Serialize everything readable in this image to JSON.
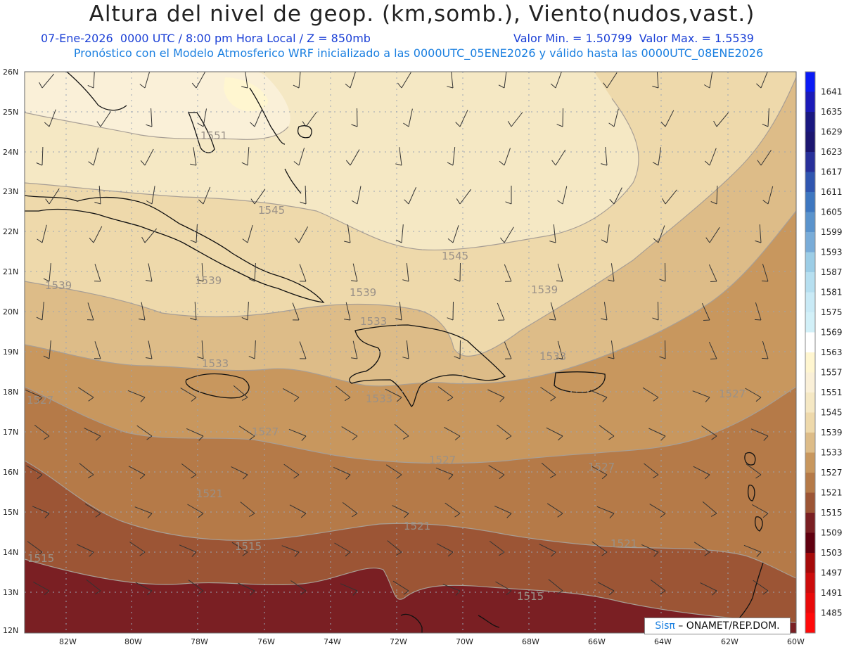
{
  "title": "Altura del nivel de geop. (km,somb.), Viento(nudos,vast.)",
  "subtitle_left": "07-Ene-2026  0000 UTC / 8:00 pm Hora Local / Z = 850mb",
  "subtitle_right": "Valor Min. = 1.50799  Valor Max. = 1.5539",
  "subtitle2": "Pronóstico con el Modelo Atmosferico WRF inicializado a las 0000UTC_05ENE2026 y válido hasta las  0000UTC_08ENE2026",
  "lat_labels": [
    "26N",
    "25N",
    "24N",
    "23N",
    "22N",
    "21N",
    "20N",
    "19N",
    "18N",
    "17N",
    "16N",
    "15N",
    "14N",
    "13N",
    "12N"
  ],
  "lon_labels": [
    "82W",
    "80W",
    "78W",
    "76W",
    "74W",
    "72W",
    "70W",
    "68W",
    "66W",
    "64W",
    "62W",
    "60W"
  ],
  "colorbar": {
    "labels": [
      "1641",
      "1635",
      "1629",
      "1623",
      "1617",
      "1611",
      "1605",
      "1599",
      "1593",
      "1587",
      "1581",
      "1575",
      "1569",
      "1563",
      "1557",
      "1551",
      "1545",
      "1539",
      "1533",
      "1527",
      "1521",
      "1515",
      "1509",
      "1503",
      "1497",
      "1491",
      "1485"
    ],
    "colors": [
      "#0a1af5",
      "#1b1ab8",
      "#1a1880",
      "#1c1670",
      "#28309a",
      "#3056b0",
      "#3e77c0",
      "#5a93cc",
      "#79acd8",
      "#9ccde6",
      "#b6dff0",
      "#c9eaf6",
      "#d2f0f8",
      "#ffffff",
      "#fff6d0",
      "#faf0d8",
      "#f5e8c4",
      "#eed9ab",
      "#ddbc88",
      "#c8975e",
      "#b57a48",
      "#9c5535",
      "#7a1f23",
      "#600010",
      "#a50a0a",
      "#cc0c0c",
      "#e80a0a",
      "#ff0a0a"
    ]
  },
  "contour_labels": [
    {
      "text": "1551"
    },
    {
      "text": "1545"
    },
    {
      "text": "1545"
    },
    {
      "text": "1539"
    },
    {
      "text": "1539"
    },
    {
      "text": "1539"
    },
    {
      "text": "1539"
    },
    {
      "text": "1533"
    },
    {
      "text": "1533"
    },
    {
      "text": "1533"
    },
    {
      "text": "1533"
    },
    {
      "text": "1527"
    },
    {
      "text": "1527"
    },
    {
      "text": "1527"
    },
    {
      "text": "1527"
    },
    {
      "text": "1527"
    },
    {
      "text": "1521"
    },
    {
      "text": "1521"
    },
    {
      "text": "1521"
    },
    {
      "text": "1515"
    },
    {
      "text": "1515"
    },
    {
      "text": "1515"
    }
  ],
  "credit": {
    "sis": "Sisπ",
    "org": " – ONAMET/REP.DOM."
  }
}
